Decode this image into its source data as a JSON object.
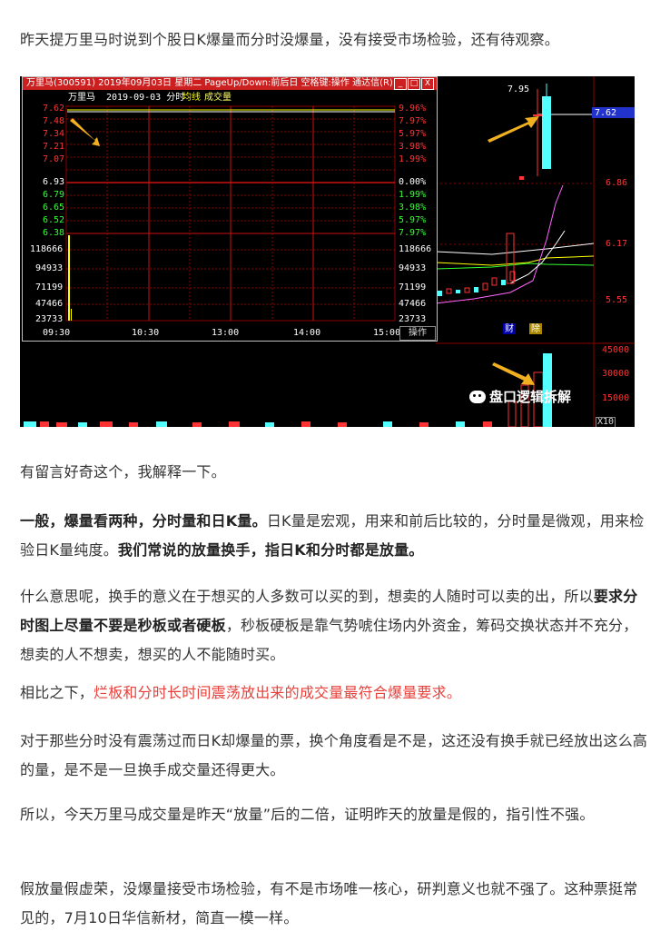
{
  "paragraphs": {
    "p1": "昨天提万里马时说到个股日K爆量而分时没爆量，没有接受市场检验，还有待观察。",
    "p2": "有留言好奇这个，我解释一下。",
    "p3_b1": "一般，爆量看两种，分时量和日K量。",
    "p3_t1": "日K量是宏观，用来和前后比较的，分时量是微观，用来检验日K量纯度。",
    "p3_b2": "我们常说的放量换手，指日K和分时都是放量。",
    "p4_t1": "什么意思呢，换手的意义在于想买的人多数可以买的到，想卖的人随时可以卖的出，所以",
    "p4_b1": "要求分时图上尽量不要是秒板或者硬板",
    "p4_t2": "，秒板硬板是靠气势唬住场内外资金，筹码交换状态并不充分，想卖的人不想卖，想买的人不能随时买。",
    "p5_t1": "相比之下，",
    "p5_r1": "烂板和分时长时间震荡放出来的成交量最符合爆量要求。",
    "p6": "对于那些分时没有震荡过而日K却爆量的票，换个角度看是不是，这还没有换手就已经放出这么高的量，是不是一旦换手成交量还得更大。",
    "p7": "所以，今天万里马成交量是昨天“放量”后的二倍，证明昨天的放量是假的，指引性不强。",
    "p8": "假放量假虚荣，没爆量接受市场检验，有不是市场唯一核心，研判意义也就不强了。这种票挺常见的，7月10日华信新材，简直一模一样。"
  },
  "screenshot": {
    "popup_title": "万里马(300591) 2019年09月03日 星期二 PageUp/Down:前后日 空格键:操作 通达信(R)",
    "win_buttons": [
      "_",
      "□",
      "X"
    ],
    "subtitle_name": "万里马",
    "subtitle_date": "2019-09-03 分时",
    "subtitle_avg": "均线",
    "subtitle_vol": "成交量",
    "price_ticks": [
      "7.62",
      "7.48",
      "7.34",
      "7.21",
      "7.07",
      "6.93",
      "6.79",
      "6.65",
      "6.52",
      "6.38"
    ],
    "pct_ticks": [
      "9.96%",
      "7.97%",
      "5.97%",
      "3.98%",
      "1.99%",
      "0.00%",
      "1.99%",
      "3.98%",
      "5.97%",
      "7.97%"
    ],
    "vol_ticks": [
      "118666",
      "94933",
      "71199",
      "47466",
      "23733"
    ],
    "time_ticks": [
      "09:30",
      "10:30",
      "13:00",
      "14:00",
      "15:00"
    ],
    "ops_label": "操作",
    "daily_price_ticks": [
      "7.62",
      "6.86",
      "6.17",
      "5.55"
    ],
    "daily_high": "7.95",
    "daily_vol_ticks": [
      "45000",
      "30000",
      "15000"
    ],
    "daily_vol_unit": "X10",
    "markers": [
      "财",
      "除"
    ],
    "watermark": "盘口逻辑拆解"
  },
  "colors": {
    "text": "#333333",
    "emphasis_red": "#e8413b",
    "chart_red": "#ff3333",
    "chart_cyan": "#54ffff",
    "grid_red": "#8b0000"
  }
}
